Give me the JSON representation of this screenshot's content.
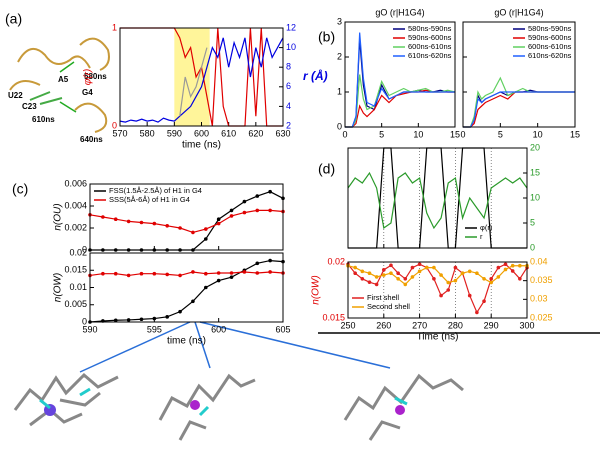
{
  "chart_data": [
    {
      "type": "line",
      "panel": "(a)",
      "xlabel": "time (ns)",
      "ylabel": "φ(r)",
      "y2label": "r (Å)",
      "ycolor": "#e00000",
      "y2color": "#0000e0",
      "xlim": [
        570,
        630
      ],
      "xticks": [
        570,
        580,
        590,
        600,
        610,
        620,
        630
      ],
      "ylim": [
        0,
        1
      ],
      "yticks": [
        0,
        1
      ],
      "y2lim": [
        2,
        12
      ],
      "y2ticks": [
        2,
        4,
        6,
        8,
        10,
        12
      ],
      "highlight_x": [
        590,
        603
      ],
      "highlight_color": "#fff59a",
      "x": [
        570,
        572,
        574,
        576,
        578,
        580,
        582,
        584,
        586,
        588,
        590,
        592,
        594,
        596,
        598,
        600,
        602,
        604,
        606,
        608,
        610,
        612,
        614,
        616,
        618,
        620,
        622,
        624,
        626,
        628,
        630
      ],
      "series": [
        {
          "color": "#e00000",
          "values": [
            1,
            1,
            1,
            1,
            1,
            1,
            1,
            1,
            1,
            1,
            1,
            0.9,
            0.7,
            0.8,
            0.5,
            0.6,
            0.3,
            0,
            1,
            0.2,
            0,
            0,
            0,
            0,
            1,
            0.1,
            1,
            0,
            0,
            0,
            0
          ]
        },
        {
          "color": "#0000e0",
          "axis": "y2",
          "values": [
            2.5,
            2.4,
            2.6,
            2.5,
            2.7,
            2.5,
            2.6,
            2.4,
            2.8,
            2.6,
            2.5,
            3.0,
            3.5,
            4,
            5,
            6,
            8,
            10,
            9,
            11,
            8,
            10.5,
            9,
            11,
            7,
            10,
            8,
            11,
            9,
            10,
            11
          ]
        },
        {
          "color": "#999999",
          "axis": "y2",
          "values": [
            null,
            null,
            null,
            null,
            null,
            null,
            null,
            null,
            null,
            null,
            null,
            3,
            7,
            5,
            6,
            8,
            10,
            null,
            null,
            null,
            null,
            null,
            null,
            null,
            null,
            null,
            null,
            null,
            null,
            null,
            null
          ]
        }
      ]
    },
    {
      "type": "line",
      "panel": "(b)",
      "title": "gO (r|H1G4)",
      "legend": "upper right",
      "xlim": [
        0,
        15
      ],
      "xticks": [
        0,
        5,
        10,
        15
      ],
      "ylim": [
        0,
        3
      ],
      "yticks": [
        0,
        1,
        2,
        3
      ],
      "x": [
        0,
        1,
        1.5,
        2,
        2.5,
        3,
        4,
        5,
        6,
        7,
        8,
        9,
        10,
        11,
        12,
        13,
        14,
        15
      ],
      "series": [
        {
          "name": "580ns-590ns",
          "color": "#000080",
          "values": [
            0,
            0,
            0.3,
            2.5,
            1.2,
            0.6,
            0.5,
            1.2,
            0.8,
            0.9,
            1.0,
            1.0,
            1.05,
            1.0,
            1.0,
            1.05,
            1.0,
            1.0
          ]
        },
        {
          "name": "590ns-600ns",
          "color": "#e00000",
          "values": [
            0,
            0,
            0.1,
            0.6,
            0.4,
            0.3,
            0.5,
            0.9,
            0.7,
            0.9,
            0.95,
            1.0,
            1.0,
            1.05,
            1.0,
            1.0,
            1.0,
            1.0
          ]
        },
        {
          "name": "600ns-610ns",
          "color": "#60d060",
          "values": [
            0,
            0,
            0.2,
            1.5,
            0.8,
            0.5,
            0.6,
            1.3,
            0.9,
            1.0,
            1.1,
            1.0,
            1.05,
            1.1,
            1.0,
            1.0,
            1.05,
            1.0
          ]
        },
        {
          "name": "610ns-620ns",
          "color": "#2060ff",
          "values": [
            0,
            0,
            0.3,
            2.7,
            1.4,
            0.7,
            0.6,
            1.1,
            0.8,
            0.9,
            1.0,
            1.0,
            1.0,
            1.0,
            1.0,
            1.0,
            1.0,
            1.0
          ]
        }
      ]
    },
    {
      "type": "line",
      "title": "gO (r|H1G4)",
      "legend": "upper right",
      "ytick_labels": false,
      "xlim": [
        0,
        15
      ],
      "xticks": [
        0,
        5,
        10,
        15
      ],
      "ylim": [
        0,
        3
      ],
      "yticks": [
        0,
        1,
        2,
        3
      ],
      "x": [
        0,
        1,
        1.5,
        2,
        2.5,
        3,
        4,
        5,
        6,
        7,
        8,
        9,
        10,
        11,
        12,
        13,
        14,
        15
      ],
      "series": [
        {
          "name": "580ns-590ns",
          "color": "#000080",
          "values": [
            0,
            0,
            0.2,
            0.9,
            0.7,
            0.8,
            0.9,
            1.0,
            0.9,
            1.0,
            1.0,
            1.05,
            1.0,
            1.0,
            1.0,
            1.0,
            1.0,
            1.0
          ]
        },
        {
          "name": "590ns-600ns",
          "color": "#e00000",
          "values": [
            0,
            0,
            0.1,
            0.5,
            0.6,
            0.7,
            0.8,
            0.9,
            0.8,
            1.0,
            1.0,
            1.0,
            1.0,
            1.0,
            1.0,
            1.0,
            1.0,
            1.0
          ]
        },
        {
          "name": "600ns-610ns",
          "color": "#60d060",
          "values": [
            0,
            0,
            0.3,
            1.0,
            0.8,
            0.9,
            1.0,
            1.4,
            0.9,
            1.0,
            1.1,
            1.0,
            1.0,
            1.0,
            1.0,
            1.0,
            1.0,
            1.0
          ]
        },
        {
          "name": "610ns-620ns",
          "color": "#2060ff",
          "values": [
            0,
            0,
            0.2,
            0.8,
            0.7,
            0.8,
            0.9,
            1.0,
            1.0,
            1.0,
            1.0,
            1.0,
            1.0,
            1.0,
            1.0,
            1.0,
            1.0,
            1.0
          ]
        }
      ]
    },
    {
      "type": "line",
      "panel": "(c)",
      "ylabel": "n(OU)",
      "legend": "upper left",
      "markers": true,
      "xtick_labels": false,
      "xlim": [
        590,
        605
      ],
      "xticks": [
        590,
        595,
        600,
        605
      ],
      "ylim": [
        0,
        0.006
      ],
      "yticks": [
        0,
        0.002,
        0.004,
        0.006
      ],
      "x": [
        590,
        591,
        592,
        593,
        594,
        595,
        596,
        597,
        598,
        599,
        600,
        601,
        602,
        603,
        604,
        605
      ],
      "series": [
        {
          "name": "FSS(1.5Å-2.5Å) of H1 in G4",
          "color": "#000000",
          "values": [
            0,
            0,
            0,
            0,
            0,
            0,
            0,
            0,
            0,
            0.001,
            0.0028,
            0.0036,
            0.0044,
            0.0049,
            0.0053,
            0.0047
          ]
        },
        {
          "name": "SSS(5Å-6Å) of H1 in G4",
          "color": "#e00000",
          "values": [
            0.0032,
            0.003,
            0.0028,
            0.0026,
            0.0025,
            0.0024,
            0.0022,
            0.002,
            0.0016,
            0.0019,
            0.0024,
            0.0031,
            0.0034,
            0.0036,
            0.0036,
            0.0035
          ]
        }
      ]
    },
    {
      "type": "line",
      "ylabel": "n(OW)",
      "xlabel": "time (ns)",
      "markers": true,
      "xlim": [
        590,
        605
      ],
      "xticks": [
        590,
        595,
        600,
        605
      ],
      "ylim": [
        0,
        0.02
      ],
      "yticks": [
        0,
        0.005,
        0.01,
        0.015,
        0.02
      ],
      "x": [
        590,
        591,
        592,
        593,
        594,
        595,
        596,
        597,
        598,
        599,
        600,
        601,
        602,
        603,
        604,
        605
      ],
      "series": [
        {
          "color": "#000000",
          "values": [
            0,
            0.0003,
            0.0005,
            0.0006,
            0.0008,
            0.001,
            0.0015,
            0.003,
            0.006,
            0.01,
            0.012,
            0.013,
            0.015,
            0.017,
            0.0178,
            0.0175
          ]
        },
        {
          "color": "#e00000",
          "values": [
            0.0135,
            0.014,
            0.014,
            0.0135,
            0.014,
            0.014,
            0.0138,
            0.0135,
            0.0145,
            0.014,
            0.0142,
            0.0142,
            0.0145,
            0.0142,
            0.0145,
            0.0142
          ]
        }
      ]
    },
    {
      "type": "line",
      "panel": "(d)",
      "legend": "lower right",
      "grid": true,
      "xtick_labels": false,
      "ytick_labels": false,
      "y2color": "#2a9a2a",
      "xlim": [
        250,
        300
      ],
      "xticks": [
        250,
        260,
        270,
        280,
        290,
        300
      ],
      "ylim": [
        0,
        1
      ],
      "yticks": [
        0,
        1
      ],
      "y2lim": [
        0,
        20
      ],
      "y2ticks": [
        0,
        5,
        10,
        15,
        20
      ],
      "x": [
        250,
        252,
        254,
        256,
        258,
        260,
        262,
        264,
        266,
        268,
        270,
        272,
        274,
        276,
        278,
        280,
        282,
        284,
        286,
        288,
        290,
        292,
        294,
        296,
        298,
        300
      ],
      "series": [
        {
          "name": "φ(r)",
          "color": "#000000",
          "values": [
            0,
            0,
            0,
            0,
            0,
            1,
            1,
            0,
            0,
            0,
            0,
            1,
            1,
            1,
            0,
            0,
            1,
            1,
            1,
            1,
            0,
            0,
            0,
            0,
            0,
            0
          ]
        },
        {
          "name": "r",
          "color": "#2a9a2a",
          "axis": "y2",
          "values": [
            12,
            14,
            13,
            15,
            12,
            4,
            5,
            14,
            15,
            13,
            14,
            7,
            4,
            6,
            13,
            14,
            6,
            10,
            8,
            6,
            12,
            13,
            14,
            13,
            14,
            12
          ]
        }
      ]
    },
    {
      "type": "line",
      "ylabel": "n(OW)",
      "xlabel": "Time (ns)",
      "legend": "lower left",
      "grid": true,
      "markers": true,
      "ycolor": "#e00000",
      "y2color": "#f0a000",
      "xlim": [
        250,
        300
      ],
      "xticks": [
        250,
        260,
        270,
        280,
        290,
        300
      ],
      "ylim": [
        0.015,
        0.02
      ],
      "yticks": [
        0.015,
        0.02
      ],
      "y2lim": [
        0.025,
        0.04
      ],
      "y2ticks": [
        0.025,
        0.03,
        0.035,
        0.04
      ],
      "x": [
        250,
        252,
        254,
        256,
        258,
        260,
        262,
        264,
        266,
        268,
        270,
        272,
        274,
        276,
        278,
        280,
        282,
        284,
        286,
        288,
        290,
        292,
        294,
        296,
        298,
        300
      ],
      "series": [
        {
          "name": "First shell",
          "color": "#e02020",
          "values": [
            0.0198,
            0.019,
            0.0185,
            0.0182,
            0.018,
            0.0193,
            0.0197,
            0.019,
            0.0185,
            0.0195,
            0.0198,
            0.0195,
            0.0185,
            0.017,
            0.0175,
            0.0195,
            0.019,
            0.017,
            0.0155,
            0.0165,
            0.0185,
            0.0195,
            0.0198,
            0.0192,
            0.0185,
            0.0195
          ]
        },
        {
          "name": "Second shell",
          "color": "#f0a000",
          "axis": "y2",
          "values": [
            0.039,
            0.0385,
            0.0375,
            0.037,
            0.036,
            0.0365,
            0.037,
            0.0355,
            0.034,
            0.036,
            0.0375,
            0.0385,
            0.0385,
            0.0365,
            0.0345,
            0.035,
            0.037,
            0.0375,
            0.037,
            0.0355,
            0.0345,
            0.036,
            0.038,
            0.039,
            0.039,
            0.039
          ]
        }
      ]
    }
  ],
  "panel_a_image": {
    "labels": [
      "A5",
      "U22",
      "G4",
      "C23",
      "580ns",
      "610ns",
      "640ns"
    ]
  }
}
